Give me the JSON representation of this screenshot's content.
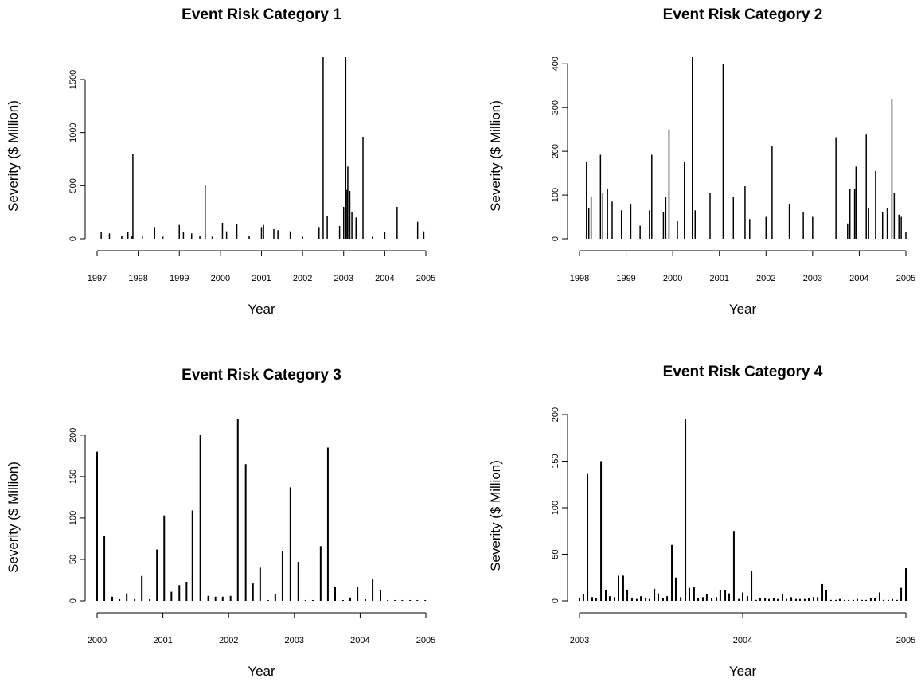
{
  "chart_data": [
    {
      "type": "spike",
      "title": "Event Risk Category 1",
      "x_label": "Year",
      "y_label": "Severity ($ Million)",
      "color": "#000000",
      "x": [
        1997.1,
        1997.3,
        1997.6,
        1997.75,
        1997.85,
        1997.87,
        1998.1,
        1998.4,
        1998.6,
        1999.0,
        1999.1,
        1999.3,
        1999.5,
        1999.63,
        1999.8,
        2000.05,
        2000.15,
        2000.4,
        2000.7,
        2001.0,
        2001.05,
        2001.3,
        2001.4,
        2001.7,
        2002.0,
        2002.4,
        2002.5,
        2002.6,
        2002.9,
        2003.0,
        2003.05,
        2003.08,
        2003.1,
        2003.15,
        2003.2,
        2003.3,
        2003.47,
        2003.7,
        2004.0,
        2004.3,
        2004.8,
        2004.95
      ],
      "values": [
        60,
        50,
        30,
        60,
        30,
        800,
        30,
        110,
        20,
        130,
        60,
        50,
        30,
        510,
        20,
        150,
        70,
        140,
        30,
        110,
        130,
        90,
        80,
        70,
        20,
        110,
        1710,
        210,
        120,
        300,
        1710,
        460,
        680,
        450,
        250,
        200,
        960,
        20,
        60,
        300,
        160,
        70
      ],
      "xlim": [
        1997,
        2005
      ],
      "ylim": [
        0,
        1710
      ],
      "xticks": [
        1997,
        1998,
        1999,
        2000,
        2001,
        2002,
        2003,
        2004,
        2005
      ],
      "yticks": [
        0,
        500,
        1000,
        1500
      ]
    },
    {
      "type": "spike",
      "title": "Event Risk Category 2",
      "x_label": "Year",
      "y_label": "Severity ($ Million)",
      "color": "#000000",
      "x": [
        1998.15,
        1998.2,
        1998.25,
        1998.45,
        1998.5,
        1998.6,
        1998.7,
        1998.9,
        1999.1,
        1999.3,
        1999.5,
        1999.55,
        1999.8,
        1999.85,
        1999.92,
        2000.1,
        2000.25,
        2000.42,
        2000.48,
        2000.8,
        2001.08,
        2001.3,
        2001.55,
        2001.65,
        2002.0,
        2002.13,
        2002.5,
        2002.8,
        2003.0,
        2003.5,
        2003.75,
        2003.8,
        2003.9,
        2003.93,
        2004.15,
        2004.2,
        2004.35,
        2004.5,
        2004.6,
        2004.7,
        2004.75,
        2004.85,
        2004.9,
        2005.0
      ],
      "values": [
        175,
        70,
        95,
        192,
        105,
        113,
        85,
        65,
        80,
        30,
        65,
        192,
        60,
        95,
        250,
        40,
        175,
        415,
        65,
        105,
        400,
        95,
        120,
        45,
        50,
        212,
        80,
        60,
        50,
        232,
        35,
        113,
        113,
        165,
        238,
        70,
        155,
        60,
        70,
        320,
        105,
        55,
        50,
        15
      ],
      "xlim": [
        1998,
        2005
      ],
      "ylim": [
        0,
        415
      ],
      "xticks": [
        1998,
        1999,
        2000,
        2001,
        2002,
        2003,
        2004,
        2005
      ],
      "yticks": [
        0,
        100,
        200,
        300,
        400
      ]
    },
    {
      "type": "spike",
      "title": "Event Risk Category 3",
      "x_label": "Year",
      "y_label": "Severity ($ Million)",
      "color": "#000000",
      "x": [
        2000.0,
        2000.11,
        2000.23,
        2000.34,
        2000.45,
        2000.57,
        2000.68,
        2000.8,
        2000.91,
        2001.02,
        2001.13,
        2001.25,
        2001.36,
        2001.45,
        2001.57,
        2001.69,
        2001.8,
        2001.91,
        2002.03,
        2002.14,
        2002.26,
        2002.37,
        2002.48,
        2002.6,
        2002.71,
        2002.82,
        2002.94,
        2003.06,
        2003.17,
        2003.28,
        2003.4,
        2003.51,
        2003.62,
        2003.74,
        2003.85,
        2003.96,
        2004.08,
        2004.19,
        2004.31,
        2004.42,
        2004.53,
        2004.64,
        2004.76,
        2004.87,
        2004.99
      ],
      "values": [
        180,
        78,
        5,
        2,
        9,
        2,
        30,
        2,
        62,
        103,
        11,
        19,
        23,
        109,
        200,
        6,
        5,
        5,
        6,
        220,
        165,
        21,
        40,
        1,
        8,
        60,
        137,
        47,
        1,
        1,
        66,
        185,
        17,
        1,
        4,
        17,
        2,
        26,
        13,
        1,
        1,
        1,
        1,
        1,
        1
      ],
      "xlim": [
        2000,
        2005
      ],
      "ylim": [
        0,
        221
      ],
      "xticks": [
        2000,
        2001,
        2002,
        2003,
        2004,
        2005
      ],
      "yticks": [
        0,
        50,
        100,
        150,
        200
      ]
    },
    {
      "type": "spike",
      "title": "Event Risk Category 4",
      "x_label": "Year",
      "y_label": "Severity ($ Million)",
      "color": "#000000",
      "x": [
        2003.0,
        2003.024,
        2003.049,
        2003.078,
        2003.102,
        2003.132,
        2003.161,
        2003.185,
        2003.215,
        2003.239,
        2003.268,
        2003.293,
        2003.322,
        2003.351,
        2003.376,
        2003.405,
        2003.429,
        2003.459,
        2003.483,
        2003.512,
        2003.537,
        2003.566,
        2003.59,
        2003.62,
        2003.649,
        2003.673,
        2003.702,
        2003.727,
        2003.756,
        2003.78,
        2003.81,
        2003.839,
        2003.863,
        2003.893,
        2003.917,
        2003.946,
        2003.976,
        2004.0,
        2004.029,
        2004.054,
        2004.083,
        2004.107,
        2004.137,
        2004.161,
        2004.19,
        2004.215,
        2004.244,
        2004.268,
        2004.298,
        2004.327,
        2004.351,
        2004.38,
        2004.405,
        2004.434,
        2004.459,
        2004.488,
        2004.512,
        2004.541,
        2004.571,
        2004.595,
        2004.624,
        2004.649,
        2004.678,
        2004.702,
        2004.732,
        2004.756,
        2004.785,
        2004.81,
        2004.839,
        2004.863,
        2004.893,
        2004.917,
        2004.946,
        2004.971,
        2005.0
      ],
      "values": [
        3,
        7,
        137,
        4,
        3,
        150,
        12,
        5,
        4,
        27,
        27,
        12,
        3,
        2,
        5,
        3,
        2,
        13,
        8,
        3,
        5,
        60,
        25,
        4,
        195,
        14,
        15,
        3,
        4,
        7,
        3,
        4,
        12,
        12,
        8,
        75,
        2,
        9,
        5,
        32,
        1,
        3,
        3,
        2,
        3,
        2,
        7,
        2,
        4,
        2,
        2,
        2,
        3,
        4,
        4,
        18,
        12,
        1,
        1,
        2,
        1,
        1,
        1,
        2,
        1,
        1,
        3,
        3,
        9,
        1,
        1,
        2,
        1,
        14,
        35
      ],
      "xlim": [
        2003,
        2005
      ],
      "ylim": [
        0,
        200
      ],
      "xticks": [
        2003,
        2004,
        2005
      ],
      "yticks": [
        0,
        50,
        100,
        150,
        200
      ]
    }
  ]
}
